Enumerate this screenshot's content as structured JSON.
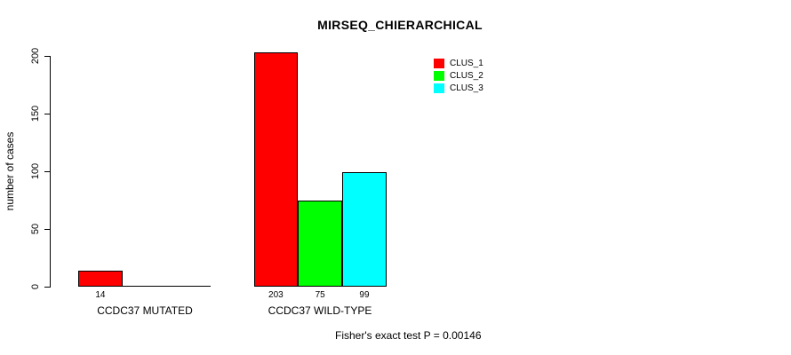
{
  "chart_data": {
    "type": "bar",
    "title": "MIRSEQ_CHIERARCHICAL",
    "ylabel": "number of cases",
    "xlabel": "",
    "ylim": [
      0,
      200
    ],
    "yticks": [
      "0",
      "50",
      "100",
      "150",
      "200"
    ],
    "grid": false,
    "legend_position": "top-right",
    "categories": [
      "CCDC37 MUTATED",
      "CCDC37 WILD-TYPE"
    ],
    "series": [
      {
        "name": "CLUS_1",
        "color": "#ff0000",
        "values": [
          14,
          203
        ]
      },
      {
        "name": "CLUS_2",
        "color": "#00ff00",
        "values": [
          0,
          75
        ]
      },
      {
        "name": "CLUS_3",
        "color": "#00ffff",
        "values": [
          0,
          99
        ]
      }
    ],
    "visible_bar_value_labels": [
      "14",
      "203",
      "75",
      "99"
    ],
    "bar_border_color": "#000000",
    "footnote": "Fisher's exact test P = 0.00146"
  }
}
